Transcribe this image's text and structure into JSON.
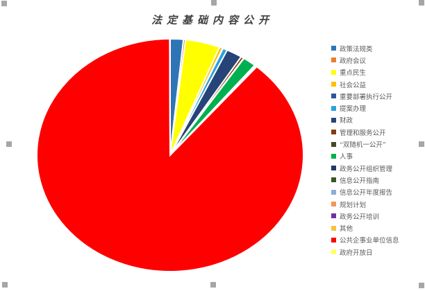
{
  "chart_data": {
    "type": "pie",
    "title": "法定基础内容公开",
    "legend_position": "right",
    "unit": "percent_share_estimated",
    "categories": [
      "政策法规类",
      "政府会议",
      "重点民生",
      "社会公益",
      "重要部署执行公开",
      "提案办理",
      "财政",
      "管理和服务公开",
      "“双随机一公开”",
      "人事",
      "政务公开组织管理",
      "信息公开指南",
      "信息公开年度报告",
      "规划计划",
      "政务公开培训",
      "其他",
      "公共企事业单位信息",
      "政府开放日"
    ],
    "values": [
      1.6,
      0.25,
      4.2,
      0.4,
      0.05,
      0.55,
      1.9,
      0.35,
      0.05,
      1.6,
      0.05,
      0.05,
      0.05,
      0.05,
      0.05,
      0.05,
      88.7,
      0.05
    ],
    "colors": [
      "#2E75B6",
      "#ED7D31",
      "#FFFF00",
      "#FFC000",
      "#2F5597",
      "#29A3DC",
      "#264478",
      "#843C0C",
      "#494529",
      "#00B050",
      "#203864",
      "#385723",
      "#8FAADC",
      "#F1975A",
      "#7030A0",
      "#F5C242",
      "#FF0000",
      "#FFFF66"
    ],
    "slice_border_color": "#FFFFFF"
  },
  "selection": {
    "handle_color": "#A6A6A6",
    "handle_count": 8
  }
}
